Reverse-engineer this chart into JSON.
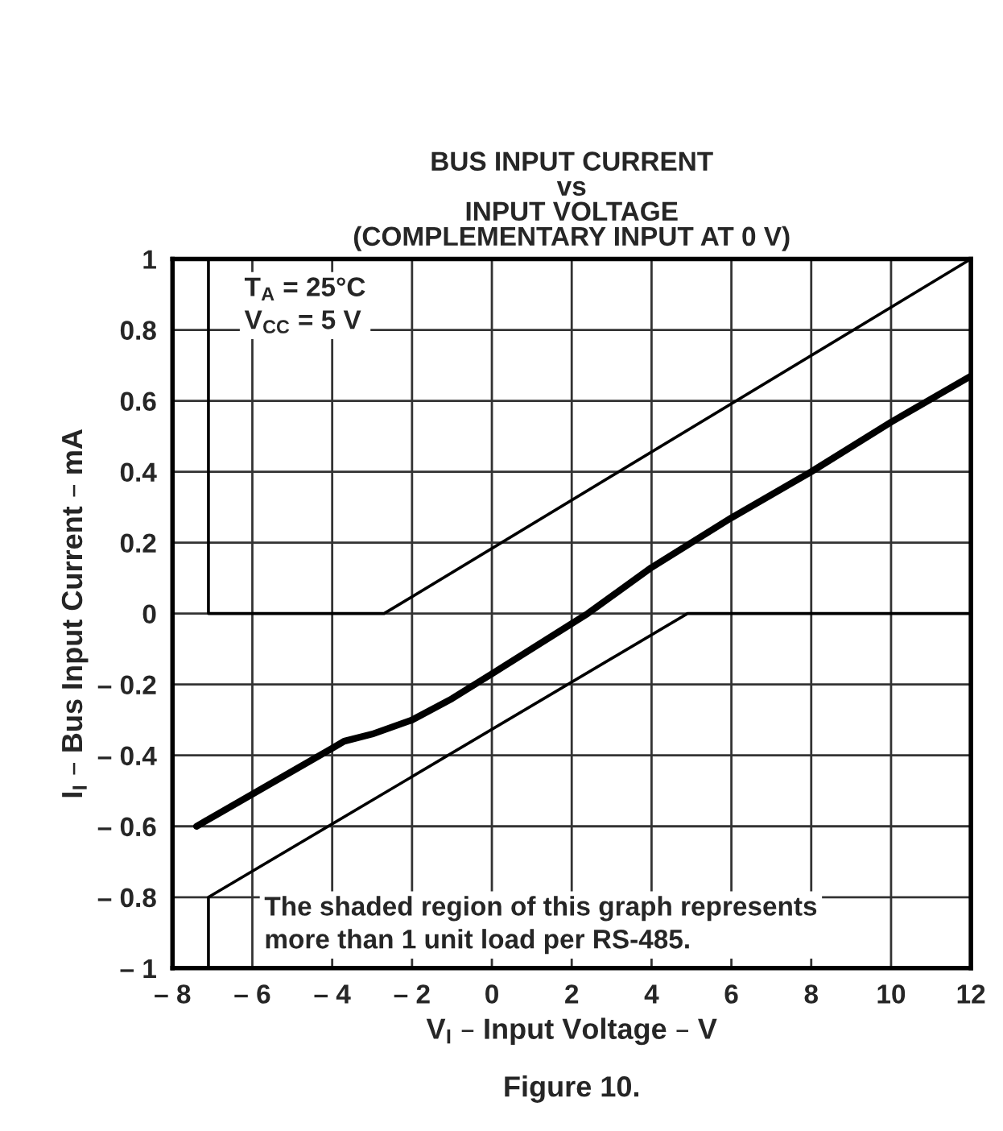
{
  "chart_data": {
    "type": "line",
    "title": "BUS INPUT CURRENT\nvs\nINPUT VOLTAGE\n(COMPLEMENTARY INPUT AT 0 V)",
    "xlabel": "V$_{I}$ – Input Voltage – V",
    "ylabel": "I$_{I}$ – Bus Input Current – mA",
    "series": [
      {
        "color": "#000000",
        "x": [
          -7.1,
          -7.1,
          -2.7,
          12
        ],
        "values": [
          1,
          0,
          0,
          1
        ]
      },
      {
        "color": "#000000",
        "x": [
          -7.1,
          -7.1,
          4.9,
          12
        ],
        "values": [
          -1,
          -0.8,
          0,
          0
        ]
      },
      {
        "color": "#000000",
        "x": [
          -7.4,
          -4,
          -3.7,
          -3,
          -2,
          -1,
          0,
          2.4,
          4,
          6,
          8,
          10,
          12
        ],
        "values": [
          -0.6,
          -0.38,
          -0.36,
          -0.34,
          -0.3,
          -0.24,
          -0.17,
          0,
          0.13,
          0.27,
          0.4,
          0.54,
          0.67
        ]
      }
    ],
    "xlim": [
      -8,
      12
    ],
    "ylim": [
      -1,
      1
    ],
    "xticks": [
      {
        "value": -8,
        "label": "– 8"
      },
      {
        "value": -6,
        "label": "– 6"
      },
      {
        "value": -4,
        "label": "– 4"
      },
      {
        "value": -2,
        "label": "– 2"
      },
      0,
      2,
      4,
      6,
      8,
      10,
      12
    ],
    "yticks": [
      {
        "value": -1,
        "label": "– 1"
      },
      {
        "value": -0.8,
        "label": "– 0.8"
      },
      {
        "value": -0.6,
        "label": "– 0.6"
      },
      {
        "value": -0.4,
        "label": "– 0.4"
      },
      {
        "value": -0.2,
        "label": "– 0.2"
      },
      0,
      0.2,
      0.4,
      0.6,
      0.8,
      1
    ],
    "grid": true,
    "legend": false,
    "line_style": "solid",
    "marker": "none",
    "annotations": [
      "T$_{A}$ = 25°C\nV$_{CC}$ = 5 V",
      "The shaded region of this graph represents\nmore than 1 unit load per RS-485.",
      "Figure 10."
    ]
  }
}
